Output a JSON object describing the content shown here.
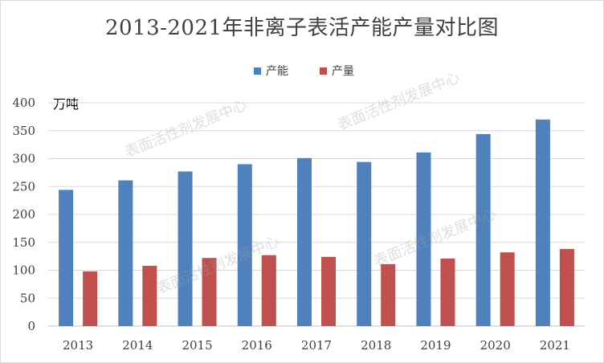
{
  "chart_data": {
    "type": "bar",
    "title": "2013-2021年非离子表活产能产量对比图",
    "unit_label": "万吨",
    "categories": [
      "2013",
      "2014",
      "2015",
      "2016",
      "2017",
      "2018",
      "2019",
      "2020",
      "2021"
    ],
    "series": [
      {
        "name": "产能",
        "color": "#4f81bd",
        "values": [
          244,
          261,
          277,
          290,
          301,
          294,
          311,
          344,
          370
        ]
      },
      {
        "name": "产量",
        "color": "#c0504d",
        "values": [
          98,
          108,
          122,
          127,
          124,
          111,
          121,
          132,
          138
        ]
      }
    ],
    "ylim": [
      0,
      400
    ],
    "yticks": [
      0,
      50,
      100,
      150,
      200,
      250,
      300,
      350,
      400
    ],
    "grid": true,
    "legend_position": "top-center",
    "watermark_text": "表面活性剂发展中心"
  }
}
